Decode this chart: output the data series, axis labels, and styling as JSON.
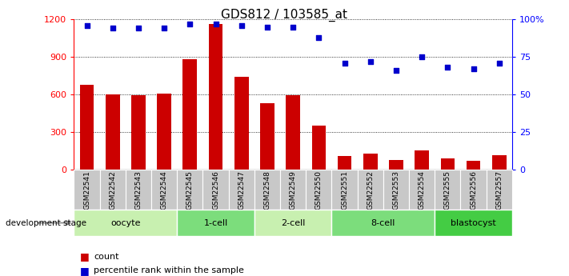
{
  "title": "GDS812 / 103585_at",
  "samples": [
    "GSM22541",
    "GSM22542",
    "GSM22543",
    "GSM22544",
    "GSM22545",
    "GSM22546",
    "GSM22547",
    "GSM22548",
    "GSM22549",
    "GSM22550",
    "GSM22551",
    "GSM22552",
    "GSM22553",
    "GSM22554",
    "GSM22555",
    "GSM22556",
    "GSM22557"
  ],
  "counts": [
    680,
    600,
    595,
    605,
    880,
    1160,
    740,
    530,
    595,
    355,
    110,
    130,
    80,
    155,
    90,
    70,
    115
  ],
  "percentiles": [
    96,
    94,
    94,
    94,
    97,
    97,
    96,
    95,
    95,
    88,
    71,
    72,
    66,
    75,
    68,
    67,
    71
  ],
  "stages": [
    {
      "label": "oocyte",
      "start": 0,
      "end": 3,
      "color": "#c8f0b0"
    },
    {
      "label": "1-cell",
      "start": 4,
      "end": 6,
      "color": "#7cdd7c"
    },
    {
      "label": "2-cell",
      "start": 7,
      "end": 9,
      "color": "#c8f0b0"
    },
    {
      "label": "8-cell",
      "start": 10,
      "end": 13,
      "color": "#7cdd7c"
    },
    {
      "label": "blastocyst",
      "start": 14,
      "end": 16,
      "color": "#44cc44"
    }
  ],
  "bar_color": "#cc0000",
  "dot_color": "#0000cc",
  "left_ylim": [
    0,
    1200
  ],
  "right_ylim": [
    0,
    100
  ],
  "left_yticks": [
    0,
    300,
    600,
    900,
    1200
  ],
  "right_yticks": [
    0,
    25,
    50,
    75,
    100
  ],
  "right_yticklabels": [
    "0",
    "25",
    "50",
    "75",
    "100%"
  ],
  "tick_label_bg": "#c8c8c8"
}
